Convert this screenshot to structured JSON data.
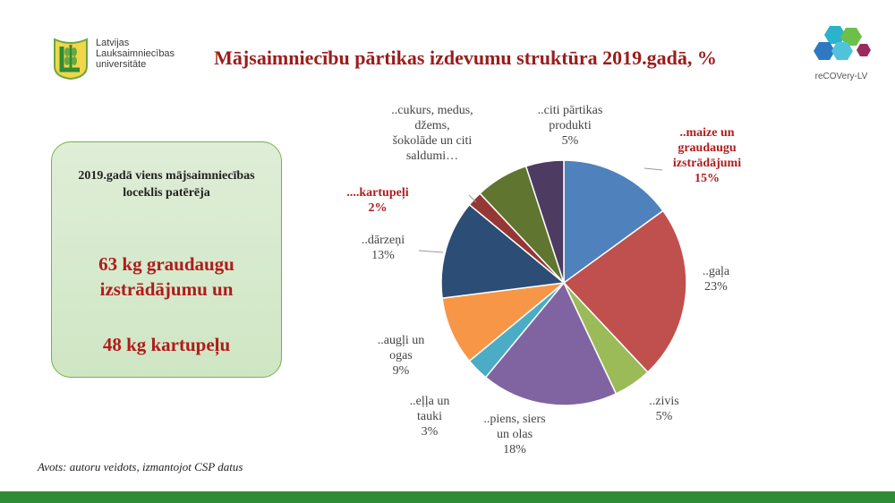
{
  "header": {
    "title": "Mājsaimniecību pārtikas izdevumu struktūra 2019.gadā, %",
    "logo_left_lines": [
      "Latvijas",
      "Lauksaimniecības",
      "universitāte"
    ],
    "logo_right_label": "reCOVery-LV"
  },
  "info_box": {
    "intro": "2019.gadā viens mājsaimniecības loceklis patērēja",
    "highlight_1": "63 kg graudaugu izstrādājumu un",
    "highlight_2": "48 kg kartupeļu"
  },
  "source": "Avots: autoru veidots, izmantojot CSP datus",
  "colors": {
    "title": "#9b1c1c",
    "highlight": "#b01c1c",
    "box_fill": "#d6eacd",
    "box_border": "#6fb54a",
    "bottom_bar": "#2e8b36"
  },
  "chart_data": {
    "type": "pie",
    "title": "Mājsaimniecību pārtikas izdevumu struktūra 2019.gadā, %",
    "slices": [
      {
        "label": "..maize un graudaugu izstrādājumi",
        "label_lines": [
          "..maize un",
          "graudaugu",
          "izstrādājumi"
        ],
        "value_label": "15%",
        "value": 15,
        "color": "#4f81bd",
        "highlight": true
      },
      {
        "label": "..gaļa",
        "label_lines": [
          "..gaļa"
        ],
        "value_label": "23%",
        "value": 23,
        "color": "#c0504d",
        "highlight": false
      },
      {
        "label": "..zivis",
        "label_lines": [
          "..zivis"
        ],
        "value_label": "5%",
        "value": 5,
        "color": "#9bbb59",
        "highlight": false
      },
      {
        "label": "..piens, siers un olas",
        "label_lines": [
          "..piens, siers",
          "un olas"
        ],
        "value_label": "18%",
        "value": 18,
        "color": "#8064a2",
        "highlight": false
      },
      {
        "label": "..eļļa un tauki",
        "label_lines": [
          "..eļļa un",
          "tauki"
        ],
        "value_label": "3%",
        "value": 3,
        "color": "#4bacc6",
        "highlight": false
      },
      {
        "label": "..augļi un ogas",
        "label_lines": [
          "..augļi un",
          "ogas"
        ],
        "value_label": "9%",
        "value": 9,
        "color": "#f79646",
        "highlight": false
      },
      {
        "label": "..dārzeņi",
        "label_lines": [
          "..dārzeņi"
        ],
        "value_label": "13%",
        "value": 13,
        "color": "#2c4d75",
        "highlight": false
      },
      {
        "label": "....kartupeļi",
        "label_lines": [
          "....kartupeļi"
        ],
        "value_label": "2%",
        "value": 2,
        "color": "#953735",
        "highlight": true
      },
      {
        "label": "..cukurs, medus, džems, šokolāde un citi saldumi…",
        "label_lines": [
          "..cukurs, medus,",
          "džems,",
          "šokolāde un citi",
          "saldumi…"
        ],
        "value_label": "",
        "value": 7,
        "color": "#5f7530",
        "highlight": false
      },
      {
        "label": "..citi pārtikas produkti",
        "label_lines": [
          "..citi pārtikas",
          "produkti"
        ],
        "value_label": "5%",
        "value": 5,
        "color": "#4d3b62",
        "highlight": false
      }
    ]
  }
}
